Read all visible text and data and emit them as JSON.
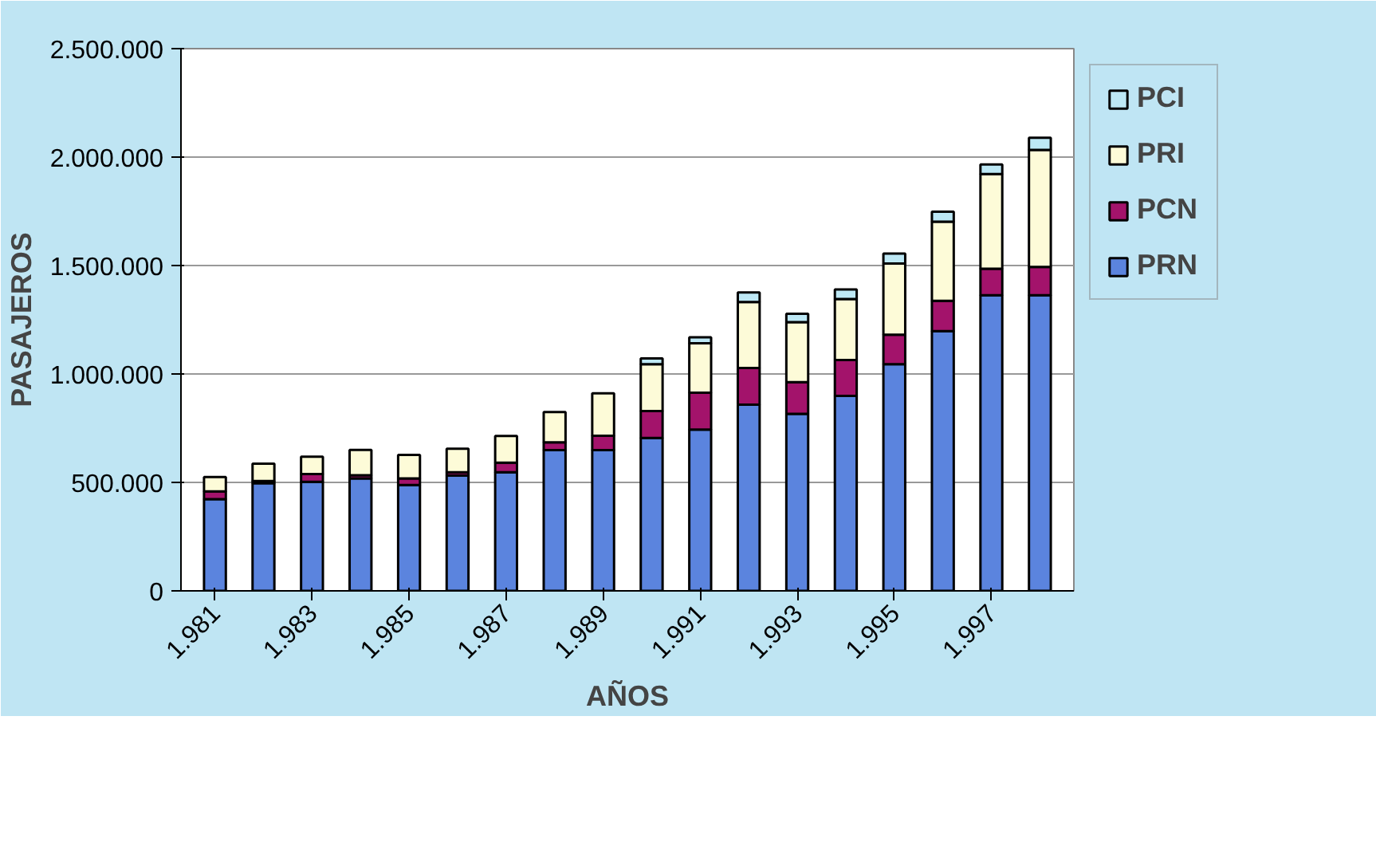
{
  "chart_data": {
    "type": "bar",
    "stacked": true,
    "xlabel": "AÑOS",
    "ylabel": "PASAJEROS",
    "categories": [
      "1.981",
      null,
      "1.983",
      null,
      "1.985",
      null,
      "1.987",
      null,
      "1.989",
      null,
      "1.991",
      null,
      "1.993",
      null,
      "1.995",
      null,
      "1.997",
      null
    ],
    "series": [
      {
        "name": "PRN",
        "color": "#5b84de",
        "values": [
          423000,
          496000,
          503000,
          518000,
          488000,
          532000,
          547000,
          649000,
          649000,
          705000,
          744000,
          858000,
          816000,
          899000,
          1045000,
          1198000,
          1363000,
          1363000
        ]
      },
      {
        "name": "PCN",
        "color": "#a3136b",
        "values": [
          36000,
          10000,
          36000,
          15000,
          30000,
          15000,
          44000,
          36000,
          66000,
          124000,
          170000,
          170000,
          146000,
          165000,
          136000,
          139000,
          122000,
          131000
        ]
      },
      {
        "name": "PRI",
        "color": "#fdfbd8",
        "values": [
          66000,
          80000,
          80000,
          117000,
          109000,
          108000,
          123000,
          139000,
          196000,
          216000,
          228000,
          304000,
          277000,
          282000,
          328000,
          365000,
          437000,
          539000
        ]
      },
      {
        "name": "PCI",
        "color": "#bde8f5",
        "values": [
          null,
          null,
          null,
          null,
          null,
          null,
          null,
          null,
          null,
          27000,
          27000,
          44000,
          39000,
          44000,
          46000,
          46000,
          44000,
          56000
        ]
      }
    ],
    "ylim": [
      0,
      2500000
    ],
    "yticks": [
      {
        "value": 0,
        "label": "0"
      },
      {
        "value": 500000,
        "label": "500.000"
      },
      {
        "value": 1000000,
        "label": "1.000.000"
      },
      {
        "value": 1500000,
        "label": "1.500.000"
      },
      {
        "value": 2000000,
        "label": "2.000.000"
      },
      {
        "value": 2500000,
        "label": "2.500.000"
      }
    ],
    "grid": "y",
    "legend": "right"
  }
}
